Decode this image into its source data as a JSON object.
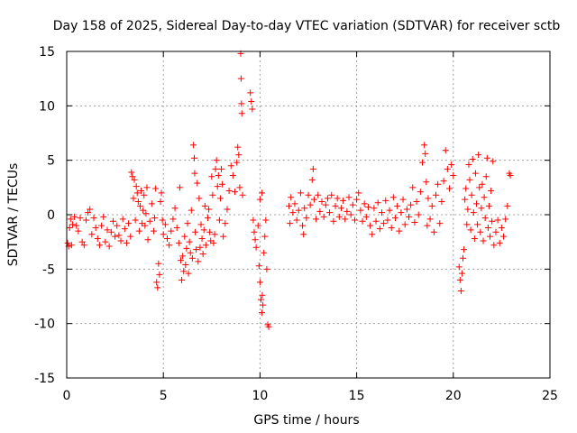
{
  "chart_data": {
    "type": "scatter",
    "title": "Day 158 of 2025, Sidereal Day-to-day VTEC variation (SDTVAR) for receiver sctb",
    "xlabel": "GPS time / hours",
    "ylabel": "SDTVAR / TECUs",
    "xlim": [
      0,
      25
    ],
    "ylim": [
      -15,
      15
    ],
    "xticks": [
      0,
      5,
      10,
      15,
      20,
      25
    ],
    "yticks": [
      -15,
      -10,
      -5,
      0,
      5,
      10,
      15
    ],
    "xtick_labels": [
      "0",
      "5",
      "10",
      "15",
      "20",
      "25"
    ],
    "ytick_labels": [
      "-15",
      "-10",
      "-5",
      "0",
      "5",
      "10",
      "15"
    ],
    "grid": true,
    "marker": "+",
    "color": "#ff0000",
    "series": [
      {
        "name": "SDTVAR",
        "points": [
          [
            0.05,
            -2.6
          ],
          [
            0.1,
            -2.9
          ],
          [
            0.15,
            -1.2
          ],
          [
            0.2,
            -0.4
          ],
          [
            0.25,
            -2.8
          ],
          [
            0.3,
            -0.9
          ],
          [
            0.4,
            -0.2
          ],
          [
            0.5,
            -1.0
          ],
          [
            0.6,
            -1.5
          ],
          [
            0.7,
            -0.3
          ],
          [
            0.8,
            -2.5
          ],
          [
            0.9,
            -2.8
          ],
          [
            1.0,
            -0.5
          ],
          [
            1.1,
            0.2
          ],
          [
            1.2,
            0.5
          ],
          [
            1.3,
            -1.8
          ],
          [
            1.4,
            -0.3
          ],
          [
            1.5,
            -1.2
          ],
          [
            1.6,
            -2.2
          ],
          [
            1.7,
            -2.8
          ],
          [
            1.8,
            -1.0
          ],
          [
            1.9,
            -0.2
          ],
          [
            2.0,
            -2.5
          ],
          [
            2.1,
            -1.4
          ],
          [
            2.2,
            -2.9
          ],
          [
            2.3,
            -1.6
          ],
          [
            2.4,
            -0.6
          ],
          [
            2.5,
            -2.0
          ],
          [
            2.6,
            -1.0
          ],
          [
            2.7,
            -1.9
          ],
          [
            2.8,
            -2.4
          ],
          [
            2.9,
            -0.4
          ],
          [
            3.0,
            -1.3
          ],
          [
            3.1,
            -2.6
          ],
          [
            3.2,
            -0.8
          ],
          [
            3.3,
            -2.0
          ],
          [
            3.35,
            3.9
          ],
          [
            3.4,
            3.5
          ],
          [
            3.45,
            1.5
          ],
          [
            3.5,
            3.2
          ],
          [
            3.55,
            -0.5
          ],
          [
            3.6,
            2.6
          ],
          [
            3.65,
            2.0
          ],
          [
            3.7,
            1.2
          ],
          [
            3.75,
            -1.5
          ],
          [
            3.8,
            0.8
          ],
          [
            3.85,
            2.2
          ],
          [
            3.9,
            -0.8
          ],
          [
            3.95,
            0.4
          ],
          [
            4.0,
            1.8
          ],
          [
            4.05,
            -1.0
          ],
          [
            4.1,
            0.1
          ],
          [
            4.15,
            2.5
          ],
          [
            4.2,
            -2.3
          ],
          [
            4.3,
            -0.6
          ],
          [
            4.4,
            1.0
          ],
          [
            4.5,
            -1.5
          ],
          [
            4.55,
            -0.3
          ],
          [
            4.6,
            2.4
          ],
          [
            4.65,
            -6.2
          ],
          [
            4.7,
            -6.7
          ],
          [
            4.75,
            -4.5
          ],
          [
            4.8,
            -5.5
          ],
          [
            4.85,
            1.2
          ],
          [
            4.9,
            2.0
          ],
          [
            4.95,
            -0.5
          ],
          [
            5.0,
            -1.8
          ],
          [
            5.1,
            -0.9
          ],
          [
            5.2,
            -2.2
          ],
          [
            5.3,
            -2.8
          ],
          [
            5.4,
            -1.5
          ],
          [
            5.5,
            -0.4
          ],
          [
            5.6,
            0.6
          ],
          [
            5.7,
            -1.2
          ],
          [
            5.8,
            -2.6
          ],
          [
            5.85,
            2.5
          ],
          [
            5.9,
            -4.2
          ],
          [
            5.95,
            -6.0
          ],
          [
            6.0,
            -3.8
          ],
          [
            6.05,
            -5.2
          ],
          [
            6.1,
            -2.0
          ],
          [
            6.15,
            -4.6
          ],
          [
            6.2,
            -3.1
          ],
          [
            6.25,
            -0.8
          ],
          [
            6.3,
            -5.4
          ],
          [
            6.35,
            -2.5
          ],
          [
            6.4,
            -3.5
          ],
          [
            6.45,
            0.4
          ],
          [
            6.5,
            -4.0
          ],
          [
            6.55,
            6.4
          ],
          [
            6.6,
            5.2
          ],
          [
            6.62,
            3.8
          ],
          [
            6.65,
            -1.6
          ],
          [
            6.7,
            -3.2
          ],
          [
            6.75,
            2.9
          ],
          [
            6.8,
            -4.3
          ],
          [
            6.85,
            1.5
          ],
          [
            6.9,
            -3.0
          ],
          [
            6.95,
            -0.9
          ],
          [
            7.0,
            -2.2
          ],
          [
            7.05,
            -3.6
          ],
          [
            7.1,
            -1.4
          ],
          [
            7.15,
            0.8
          ],
          [
            7.2,
            -2.8
          ],
          [
            7.3,
            -0.3
          ],
          [
            7.35,
            0.5
          ],
          [
            7.4,
            -1.6
          ],
          [
            7.45,
            -2.4
          ],
          [
            7.5,
            3.5
          ],
          [
            7.55,
            1.8
          ],
          [
            7.6,
            -2.6
          ],
          [
            7.65,
            -1.8
          ],
          [
            7.7,
            4.2
          ],
          [
            7.75,
            5.0
          ],
          [
            7.8,
            2.6
          ],
          [
            7.85,
            3.6
          ],
          [
            7.9,
            -0.5
          ],
          [
            7.95,
            1.5
          ],
          [
            8.0,
            4.2
          ],
          [
            8.05,
            2.8
          ],
          [
            8.1,
            -2.0
          ],
          [
            8.2,
            -0.8
          ],
          [
            8.3,
            0.5
          ],
          [
            8.4,
            2.2
          ],
          [
            8.5,
            4.5
          ],
          [
            8.6,
            3.6
          ],
          [
            8.7,
            2.1
          ],
          [
            8.8,
            4.8
          ],
          [
            8.85,
            6.2
          ],
          [
            8.9,
            5.5
          ],
          [
            8.95,
            2.5
          ],
          [
            9.0,
            14.8
          ],
          [
            9.02,
            12.5
          ],
          [
            9.04,
            10.2
          ],
          [
            9.06,
            9.3
          ],
          [
            9.1,
            1.8
          ],
          [
            9.5,
            11.2
          ],
          [
            9.55,
            10.4
          ],
          [
            9.6,
            9.7
          ],
          [
            9.65,
            -0.5
          ],
          [
            9.7,
            -1.6
          ],
          [
            9.75,
            -2.3
          ],
          [
            9.8,
            -3.0
          ],
          [
            9.9,
            -1.0
          ],
          [
            9.95,
            -4.7
          ],
          [
            10.0,
            -6.2
          ],
          [
            10.05,
            -7.8
          ],
          [
            10.1,
            -9.0
          ],
          [
            10.12,
            -7.4
          ],
          [
            10.15,
            -8.3
          ],
          [
            10.2,
            -3.5
          ],
          [
            10.25,
            -2.0
          ],
          [
            10.3,
            -0.5
          ],
          [
            10.35,
            -5.0
          ],
          [
            10.4,
            -10.1
          ],
          [
            10.45,
            -10.3
          ],
          [
            10.1,
            2.0
          ],
          [
            10.0,
            1.4
          ],
          [
            11.5,
            0.8
          ],
          [
            11.55,
            -0.8
          ],
          [
            11.6,
            1.6
          ],
          [
            11.7,
            0.2
          ],
          [
            11.8,
            1.0
          ],
          [
            11.9,
            -0.5
          ],
          [
            12.0,
            0.4
          ],
          [
            12.1,
            2.0
          ],
          [
            12.2,
            -1.0
          ],
          [
            12.25,
            -1.8
          ],
          [
            12.3,
            0.6
          ],
          [
            12.4,
            -0.3
          ],
          [
            12.5,
            1.8
          ],
          [
            12.6,
            0.9
          ],
          [
            12.7,
            3.2
          ],
          [
            12.75,
            4.2
          ],
          [
            12.8,
            1.4
          ],
          [
            12.9,
            -0.4
          ],
          [
            13.0,
            1.8
          ],
          [
            13.1,
            0.3
          ],
          [
            13.2,
            1.2
          ],
          [
            13.3,
            -0.2
          ],
          [
            13.4,
            0.9
          ],
          [
            13.5,
            1.5
          ],
          [
            13.6,
            0.2
          ],
          [
            13.7,
            1.8
          ],
          [
            13.8,
            -0.6
          ],
          [
            13.9,
            0.8
          ],
          [
            14.0,
            1.5
          ],
          [
            14.1,
            -0.2
          ],
          [
            14.2,
            0.6
          ],
          [
            14.3,
            1.3
          ],
          [
            14.4,
            -0.4
          ],
          [
            14.5,
            0.3
          ],
          [
            14.6,
            1.6
          ],
          [
            14.7,
            0.0
          ],
          [
            14.8,
            0.9
          ],
          [
            14.9,
            -0.5
          ],
          [
            15.0,
            1.4
          ],
          [
            15.1,
            2.0
          ],
          [
            15.2,
            0.4
          ],
          [
            15.3,
            -0.6
          ],
          [
            15.4,
            1.0
          ],
          [
            15.5,
            -0.2
          ],
          [
            15.6,
            0.7
          ],
          [
            15.7,
            -1.0
          ],
          [
            15.8,
            -1.8
          ],
          [
            15.9,
            0.6
          ],
          [
            16.0,
            -0.6
          ],
          [
            16.1,
            1.1
          ],
          [
            16.2,
            -1.3
          ],
          [
            16.3,
            0.2
          ],
          [
            16.4,
            -0.8
          ],
          [
            16.5,
            1.3
          ],
          [
            16.6,
            -0.5
          ],
          [
            16.7,
            0.4
          ],
          [
            16.8,
            -1.2
          ],
          [
            16.9,
            1.6
          ],
          [
            17.0,
            -0.3
          ],
          [
            17.1,
            0.8
          ],
          [
            17.2,
            -1.5
          ],
          [
            17.3,
            0.2
          ],
          [
            17.4,
            1.4
          ],
          [
            17.5,
            -0.9
          ],
          [
            17.6,
            0.5
          ],
          [
            17.7,
            -0.2
          ],
          [
            17.8,
            0.9
          ],
          [
            17.9,
            2.5
          ],
          [
            18.0,
            -0.7
          ],
          [
            18.1,
            1.2
          ],
          [
            18.2,
            0.0
          ],
          [
            18.3,
            2.1
          ],
          [
            18.4,
            4.8
          ],
          [
            18.5,
            6.4
          ],
          [
            18.55,
            5.6
          ],
          [
            18.6,
            3.0
          ],
          [
            18.65,
            -1.0
          ],
          [
            18.7,
            1.5
          ],
          [
            18.8,
            -0.4
          ],
          [
            18.9,
            0.8
          ],
          [
            19.0,
            -1.6
          ],
          [
            19.1,
            1.8
          ],
          [
            19.2,
            2.8
          ],
          [
            19.3,
            -0.8
          ],
          [
            19.4,
            1.2
          ],
          [
            19.5,
            3.1
          ],
          [
            19.6,
            5.9
          ],
          [
            19.7,
            4.2
          ],
          [
            19.8,
            2.4
          ],
          [
            19.9,
            4.6
          ],
          [
            20.0,
            3.6
          ],
          [
            20.3,
            -4.8
          ],
          [
            20.35,
            -6.0
          ],
          [
            20.4,
            -7.0
          ],
          [
            20.45,
            -5.4
          ],
          [
            20.5,
            -4.0
          ],
          [
            20.55,
            -3.2
          ],
          [
            20.6,
            1.4
          ],
          [
            20.65,
            2.4
          ],
          [
            20.7,
            -0.9
          ],
          [
            20.75,
            0.5
          ],
          [
            20.8,
            4.6
          ],
          [
            20.85,
            3.2
          ],
          [
            20.9,
            -1.4
          ],
          [
            20.95,
            1.8
          ],
          [
            21.0,
            5.1
          ],
          [
            21.05,
            0.2
          ],
          [
            21.1,
            -2.2
          ],
          [
            21.15,
            3.8
          ],
          [
            21.2,
            1.0
          ],
          [
            21.25,
            -0.9
          ],
          [
            21.3,
            5.5
          ],
          [
            21.35,
            2.5
          ],
          [
            21.4,
            -1.6
          ],
          [
            21.45,
            0.6
          ],
          [
            21.5,
            2.8
          ],
          [
            21.55,
            -2.4
          ],
          [
            21.6,
            1.6
          ],
          [
            21.65,
            -0.3
          ],
          [
            21.7,
            3.5
          ],
          [
            21.75,
            5.2
          ],
          [
            21.8,
            -1.2
          ],
          [
            21.85,
            0.8
          ],
          [
            21.9,
            -2.0
          ],
          [
            21.95,
            2.2
          ],
          [
            22.0,
            -0.6
          ],
          [
            22.05,
            4.9
          ],
          [
            22.1,
            -2.8
          ],
          [
            22.2,
            -1.6
          ],
          [
            22.3,
            -0.5
          ],
          [
            22.4,
            -2.6
          ],
          [
            22.5,
            -1.2
          ],
          [
            22.6,
            -2.0
          ],
          [
            22.7,
            -0.4
          ],
          [
            22.8,
            0.8
          ],
          [
            22.9,
            3.8
          ],
          [
            22.95,
            3.6
          ]
        ]
      }
    ]
  }
}
